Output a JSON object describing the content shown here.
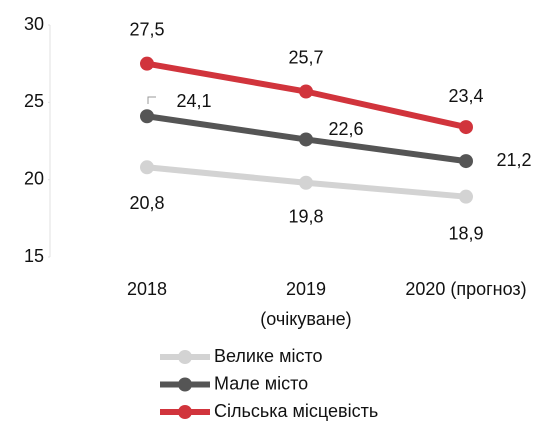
{
  "chart_data": {
    "type": "line",
    "categories": [
      "2018",
      "2019\n(очікуване)",
      "2020 (прогноз)"
    ],
    "series": [
      {
        "name": "Велике місто",
        "color": "#d3d3d3",
        "values": [
          20.8,
          19.8,
          18.9
        ],
        "value_labels": [
          "20,8",
          "19,8",
          "18,9"
        ]
      },
      {
        "name": "Мале місто",
        "color": "#555555",
        "values": [
          24.1,
          22.6,
          21.2
        ],
        "value_labels": [
          "24,1",
          "22,6",
          "21,2"
        ]
      },
      {
        "name": "Сільська місцевість",
        "color": "#d1343c",
        "values": [
          27.5,
          25.7,
          23.4
        ],
        "value_labels": [
          "27,5",
          "25,7",
          "23,4"
        ]
      }
    ],
    "ylim": [
      15,
      30
    ],
    "yticks": [
      15,
      20,
      25,
      30
    ],
    "grid": false,
    "legend": "bottom"
  }
}
